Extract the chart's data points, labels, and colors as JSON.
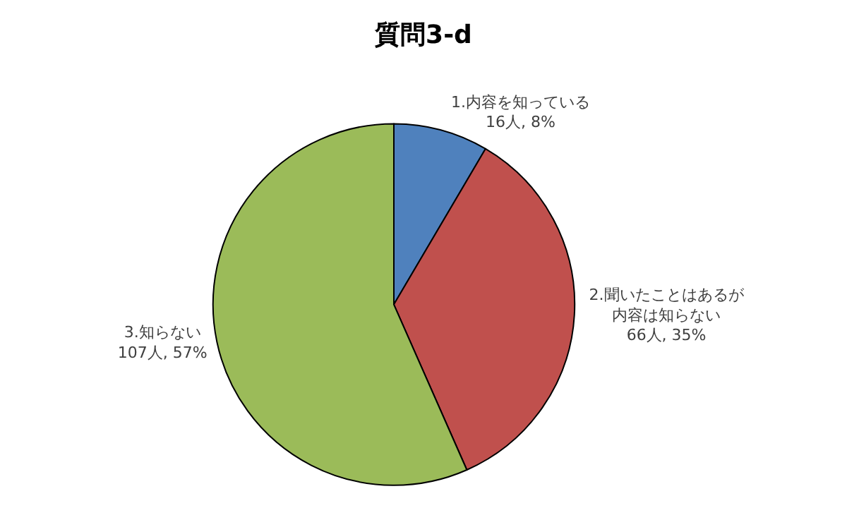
{
  "chart_data": {
    "type": "pie",
    "title": "質問3-d",
    "categories": [
      "1.内容を知っている",
      "2.聞いたことはあるが内容は知らない",
      "3.知らない"
    ],
    "values": [
      16,
      66,
      107
    ],
    "value_labels": [
      "16人, 8%",
      "66人, 35%",
      "107人, 57%"
    ],
    "colors": [
      "#4f81bd",
      "#c0504d",
      "#9bbb59"
    ],
    "legend": false
  }
}
